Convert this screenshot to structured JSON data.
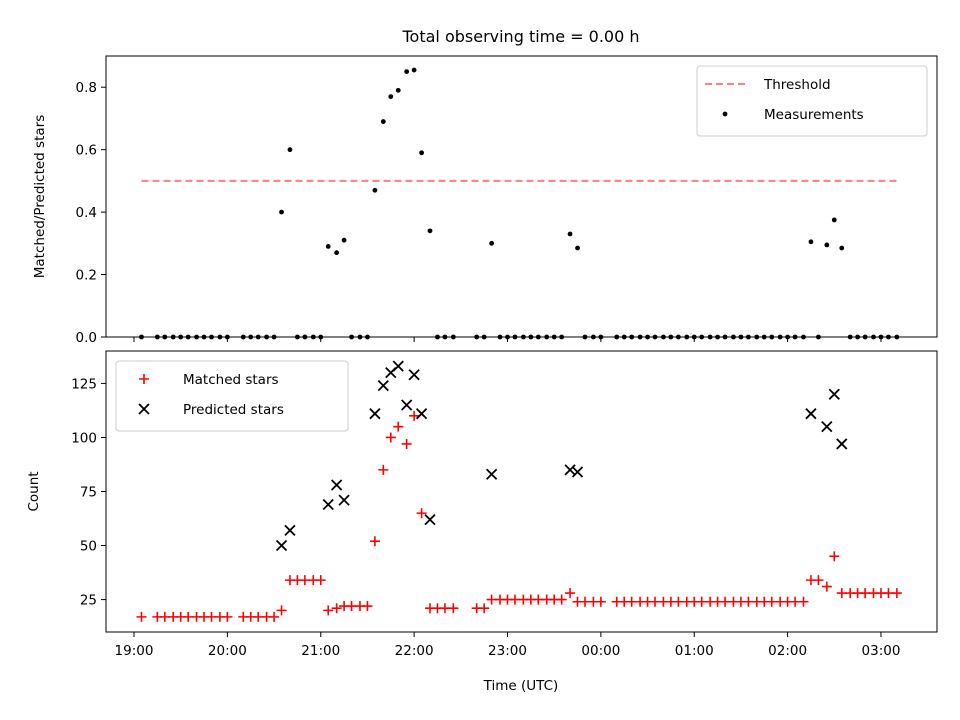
{
  "figure": {
    "title": "Total observing time = 0.00 h",
    "xlabel": "Time (UTC)"
  },
  "chart_data": [
    {
      "type": "scatter",
      "panel": "top",
      "title": "Total observing time = 0.00 h",
      "xlabel": "",
      "ylabel": "Matched/Predicted stars",
      "x_unit": "hours since 19:00 UTC",
      "xlim": [
        18.7,
        27.6
      ],
      "ylim": [
        0,
        0.9
      ],
      "yticks": [
        0.0,
        0.2,
        0.4,
        0.6,
        0.8
      ],
      "ytick_labels": [
        "0.0",
        "0.2",
        "0.4",
        "0.6",
        "0.8"
      ],
      "legend_position": "top-right",
      "threshold": {
        "name": "Threshold",
        "value": 0.5,
        "x_range": [
          19.08,
          27.17
        ],
        "color": "#ff7f7f",
        "style": "dashed"
      },
      "series": [
        {
          "name": "Measurements",
          "marker": "dot",
          "color": "#000000",
          "points": [
            [
              19.08,
              0
            ],
            [
              19.25,
              0
            ],
            [
              19.33,
              0
            ],
            [
              19.42,
              0
            ],
            [
              19.5,
              0
            ],
            [
              19.58,
              0
            ],
            [
              19.67,
              0
            ],
            [
              19.75,
              0
            ],
            [
              19.83,
              0
            ],
            [
              19.92,
              0
            ],
            [
              20.0,
              0
            ],
            [
              20.17,
              0
            ],
            [
              20.25,
              0
            ],
            [
              20.33,
              0
            ],
            [
              20.42,
              0
            ],
            [
              20.5,
              0
            ],
            [
              20.58,
              0.4
            ],
            [
              20.67,
              0.6
            ],
            [
              20.75,
              0
            ],
            [
              20.83,
              0
            ],
            [
              20.92,
              0
            ],
            [
              21.0,
              0
            ],
            [
              21.08,
              0.29
            ],
            [
              21.17,
              0.27
            ],
            [
              21.25,
              0.31
            ],
            [
              21.33,
              0
            ],
            [
              21.42,
              0
            ],
            [
              21.5,
              0
            ],
            [
              21.58,
              0.47
            ],
            [
              21.67,
              0.69
            ],
            [
              21.75,
              0.77
            ],
            [
              21.83,
              0.79
            ],
            [
              21.92,
              0.85
            ],
            [
              22.0,
              0.855
            ],
            [
              22.08,
              0.59
            ],
            [
              22.17,
              0.34
            ],
            [
              22.25,
              0
            ],
            [
              22.33,
              0
            ],
            [
              22.42,
              0
            ],
            [
              22.67,
              0
            ],
            [
              22.75,
              0
            ],
            [
              22.83,
              0.3
            ],
            [
              22.92,
              0
            ],
            [
              23.0,
              0
            ],
            [
              23.08,
              0
            ],
            [
              23.17,
              0
            ],
            [
              23.25,
              0
            ],
            [
              23.33,
              0
            ],
            [
              23.42,
              0
            ],
            [
              23.5,
              0
            ],
            [
              23.58,
              0
            ],
            [
              23.67,
              0.33
            ],
            [
              23.75,
              0.285
            ],
            [
              23.83,
              0
            ],
            [
              23.92,
              0
            ],
            [
              24.0,
              0
            ],
            [
              24.17,
              0
            ],
            [
              24.25,
              0
            ],
            [
              24.33,
              0
            ],
            [
              24.42,
              0
            ],
            [
              24.5,
              0
            ],
            [
              24.58,
              0
            ],
            [
              24.67,
              0
            ],
            [
              24.75,
              0
            ],
            [
              24.83,
              0
            ],
            [
              24.92,
              0
            ],
            [
              25.0,
              0
            ],
            [
              25.08,
              0
            ],
            [
              25.17,
              0
            ],
            [
              25.25,
              0
            ],
            [
              25.33,
              0
            ],
            [
              25.42,
              0
            ],
            [
              25.5,
              0
            ],
            [
              25.58,
              0
            ],
            [
              25.67,
              0
            ],
            [
              25.75,
              0
            ],
            [
              25.83,
              0
            ],
            [
              25.92,
              0
            ],
            [
              26.0,
              0
            ],
            [
              26.08,
              0
            ],
            [
              26.17,
              0
            ],
            [
              26.25,
              0.305
            ],
            [
              26.33,
              0
            ],
            [
              26.42,
              0.295
            ],
            [
              26.5,
              0.375
            ],
            [
              26.58,
              0.285
            ],
            [
              26.67,
              0
            ],
            [
              26.75,
              0
            ],
            [
              26.83,
              0
            ],
            [
              26.92,
              0
            ],
            [
              27.0,
              0
            ],
            [
              27.08,
              0
            ],
            [
              27.17,
              0
            ]
          ]
        }
      ]
    },
    {
      "type": "scatter",
      "panel": "bottom",
      "title": "",
      "xlabel": "Time (UTC)",
      "ylabel": "Count",
      "x_unit": "hours since 19:00 UTC",
      "xlim": [
        18.7,
        27.6
      ],
      "ylim": [
        10,
        140
      ],
      "xticks": [
        19,
        20,
        21,
        22,
        23,
        24,
        25,
        26,
        27
      ],
      "xtick_labels": [
        "19:00",
        "20:00",
        "21:00",
        "22:00",
        "23:00",
        "00:00",
        "01:00",
        "02:00",
        "03:00"
      ],
      "yticks": [
        25,
        50,
        75,
        100,
        125
      ],
      "ytick_labels": [
        "25",
        "50",
        "75",
        "100",
        "125"
      ],
      "legend_position": "top-left",
      "series": [
        {
          "name": "Matched stars",
          "marker": "plus",
          "color": "#ff0000",
          "points": [
            [
              19.08,
              17
            ],
            [
              19.25,
              17
            ],
            [
              19.33,
              17
            ],
            [
              19.42,
              17
            ],
            [
              19.5,
              17
            ],
            [
              19.58,
              17
            ],
            [
              19.67,
              17
            ],
            [
              19.75,
              17
            ],
            [
              19.83,
              17
            ],
            [
              19.92,
              17
            ],
            [
              20.0,
              17
            ],
            [
              20.17,
              17
            ],
            [
              20.25,
              17
            ],
            [
              20.33,
              17
            ],
            [
              20.42,
              17
            ],
            [
              20.5,
              17
            ],
            [
              20.58,
              20
            ],
            [
              20.67,
              34
            ],
            [
              20.75,
              34
            ],
            [
              20.83,
              34
            ],
            [
              20.92,
              34
            ],
            [
              21.0,
              34
            ],
            [
              21.08,
              20
            ],
            [
              21.17,
              21
            ],
            [
              21.25,
              22
            ],
            [
              21.33,
              22
            ],
            [
              21.42,
              22
            ],
            [
              21.5,
              22
            ],
            [
              21.58,
              52
            ],
            [
              21.67,
              85
            ],
            [
              21.75,
              100
            ],
            [
              21.83,
              105
            ],
            [
              21.92,
              97
            ],
            [
              22.0,
              110
            ],
            [
              22.08,
              65
            ],
            [
              22.17,
              21
            ],
            [
              22.25,
              21
            ],
            [
              22.33,
              21
            ],
            [
              22.42,
              21
            ],
            [
              22.67,
              21
            ],
            [
              22.75,
              21
            ],
            [
              22.83,
              25
            ],
            [
              22.92,
              25
            ],
            [
              23.0,
              25
            ],
            [
              23.08,
              25
            ],
            [
              23.17,
              25
            ],
            [
              23.25,
              25
            ],
            [
              23.33,
              25
            ],
            [
              23.42,
              25
            ],
            [
              23.5,
              25
            ],
            [
              23.58,
              25
            ],
            [
              23.67,
              28
            ],
            [
              23.75,
              24
            ],
            [
              23.83,
              24
            ],
            [
              23.92,
              24
            ],
            [
              24.0,
              24
            ],
            [
              24.17,
              24
            ],
            [
              24.25,
              24
            ],
            [
              24.33,
              24
            ],
            [
              24.42,
              24
            ],
            [
              24.5,
              24
            ],
            [
              24.58,
              24
            ],
            [
              24.67,
              24
            ],
            [
              24.75,
              24
            ],
            [
              24.83,
              24
            ],
            [
              24.92,
              24
            ],
            [
              25.0,
              24
            ],
            [
              25.08,
              24
            ],
            [
              25.17,
              24
            ],
            [
              25.25,
              24
            ],
            [
              25.33,
              24
            ],
            [
              25.42,
              24
            ],
            [
              25.5,
              24
            ],
            [
              25.58,
              24
            ],
            [
              25.67,
              24
            ],
            [
              25.75,
              24
            ],
            [
              25.83,
              24
            ],
            [
              25.92,
              24
            ],
            [
              26.0,
              24
            ],
            [
              26.08,
              24
            ],
            [
              26.17,
              24
            ],
            [
              26.25,
              34
            ],
            [
              26.33,
              34
            ],
            [
              26.42,
              31
            ],
            [
              26.5,
              45
            ],
            [
              26.58,
              28
            ],
            [
              26.67,
              28
            ],
            [
              26.75,
              28
            ],
            [
              26.83,
              28
            ],
            [
              26.92,
              28
            ],
            [
              27.0,
              28
            ],
            [
              27.08,
              28
            ],
            [
              27.17,
              28
            ]
          ]
        },
        {
          "name": "Predicted stars",
          "marker": "x",
          "color": "#000000",
          "points": [
            [
              20.58,
              50
            ],
            [
              20.67,
              57
            ],
            [
              21.08,
              69
            ],
            [
              21.17,
              78
            ],
            [
              21.25,
              71
            ],
            [
              21.58,
              111
            ],
            [
              21.67,
              124
            ],
            [
              21.75,
              130
            ],
            [
              21.83,
              133
            ],
            [
              21.92,
              115
            ],
            [
              22.0,
              129
            ],
            [
              22.08,
              111
            ],
            [
              22.17,
              62
            ],
            [
              22.83,
              83
            ],
            [
              23.67,
              85
            ],
            [
              23.75,
              84
            ],
            [
              26.25,
              111
            ],
            [
              26.42,
              105
            ],
            [
              26.5,
              120
            ],
            [
              26.58,
              97
            ]
          ]
        }
      ]
    }
  ]
}
